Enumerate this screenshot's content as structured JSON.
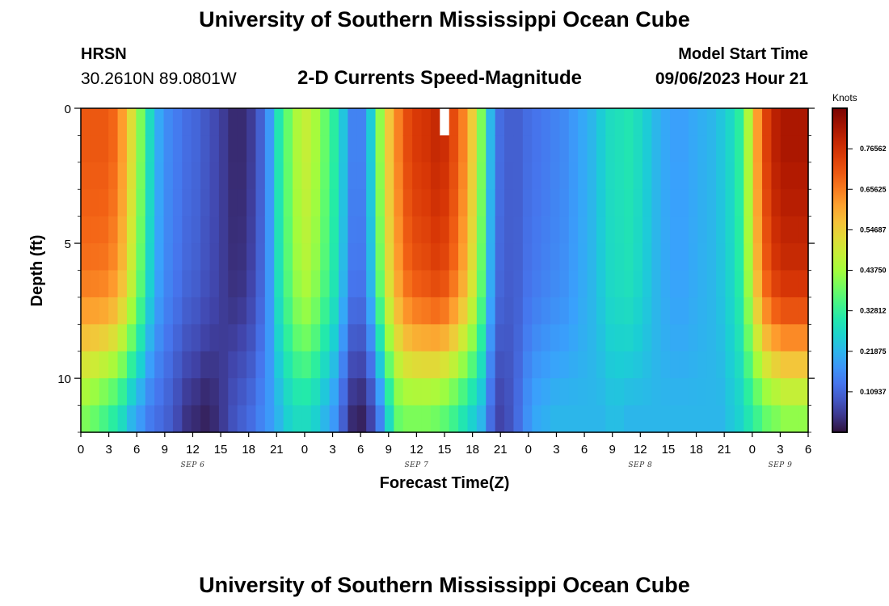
{
  "header": {
    "title": "University of Southern Mississippi Ocean Cube",
    "station": "HRSN",
    "coords": "30.2610N  89.0801W",
    "subtitle": "2-D Currents Speed-Magnitude",
    "model_label": "Model Start Time",
    "model_time": "09/06/2023 Hour 21"
  },
  "footer": {
    "title": "University of Southern Mississippi Ocean Cube"
  },
  "chart_data": {
    "type": "heatmap",
    "title": "2-D Currents Speed-Magnitude",
    "xlabel": "Forecast Time(Z)",
    "ylabel": "Depth (ft)",
    "x_start_hour": 0,
    "x_end_hour": 78,
    "x_step_hours": 1,
    "x_ticks": [
      "0",
      "3",
      "6",
      "9",
      "12",
      "15",
      "18",
      "21",
      "0",
      "3",
      "6",
      "9",
      "12",
      "15",
      "18",
      "21",
      "0",
      "3",
      "6",
      "9",
      "12",
      "15",
      "18",
      "21",
      "0",
      "3",
      "6"
    ],
    "date_labels": [
      {
        "text": "SEP 6",
        "hour": 12
      },
      {
        "text": "SEP 7",
        "hour": 36
      },
      {
        "text": "SEP 8",
        "hour": 60
      },
      {
        "text": "SEP 9",
        "hour": 75
      }
    ],
    "y_range": [
      0,
      12
    ],
    "y_ticks": [
      "0",
      "5",
      "10"
    ],
    "y_tick_values": [
      0,
      5,
      10
    ],
    "depth_levels": [
      0.5,
      1.5,
      2.5,
      3.5,
      4.5,
      5.5,
      6.5,
      7.5,
      8.5,
      9.5,
      10.5,
      11.5
    ],
    "colorbar": {
      "unit": "Knots",
      "min": 0.0,
      "max": 0.875,
      "labels": [
        "0.76562",
        "0.65625",
        "0.54687",
        "0.43750",
        "0.32812",
        "0.21875",
        "0.10937"
      ],
      "label_values": [
        0.765625,
        0.65625,
        0.546875,
        0.4375,
        0.328125,
        0.21875,
        0.109375
      ],
      "colormap": "turbo"
    },
    "surface_speed_by_hour": [
      0.7,
      0.7,
      0.7,
      0.68,
      0.62,
      0.52,
      0.4,
      0.28,
      0.2,
      0.16,
      0.14,
      0.12,
      0.11,
      0.09,
      0.07,
      0.05,
      0.03,
      0.03,
      0.05,
      0.1,
      0.18,
      0.3,
      0.38,
      0.45,
      0.48,
      0.44,
      0.38,
      0.32,
      0.24,
      0.15,
      0.15,
      0.25,
      0.42,
      0.56,
      0.65,
      0.72,
      0.75,
      0.76,
      0.78,
      0.77,
      0.72,
      0.65,
      0.55,
      0.4,
      0.22,
      0.12,
      0.1,
      0.1,
      0.12,
      0.13,
      0.14,
      0.15,
      0.16,
      0.18,
      0.2,
      0.22,
      0.25,
      0.28,
      0.29,
      0.3,
      0.28,
      0.25,
      0.22,
      0.2,
      0.19,
      0.19,
      0.2,
      0.21,
      0.22,
      0.24,
      0.27,
      0.32,
      0.45,
      0.62,
      0.74,
      0.8,
      0.82,
      0.82,
      0.82
    ],
    "bottom_speed_by_hour": [
      0.4,
      0.38,
      0.35,
      0.32,
      0.28,
      0.22,
      0.18,
      0.14,
      0.12,
      0.1,
      0.07,
      0.04,
      0.03,
      0.02,
      0.03,
      0.05,
      0.08,
      0.1,
      0.12,
      0.15,
      0.18,
      0.22,
      0.26,
      0.28,
      0.28,
      0.26,
      0.22,
      0.18,
      0.1,
      0.03,
      0.02,
      0.06,
      0.15,
      0.28,
      0.38,
      0.4,
      0.4,
      0.4,
      0.39,
      0.37,
      0.34,
      0.3,
      0.26,
      0.22,
      0.12,
      0.06,
      0.08,
      0.12,
      0.17,
      0.2,
      0.21,
      0.22,
      0.22,
      0.22,
      0.22,
      0.22,
      0.22,
      0.23,
      0.23,
      0.22,
      0.22,
      0.22,
      0.22,
      0.22,
      0.22,
      0.22,
      0.22,
      0.22,
      0.22,
      0.22,
      0.24,
      0.26,
      0.3,
      0.34,
      0.38,
      0.4,
      0.42,
      0.42,
      0.42
    ],
    "depth_profile_shape": [
      0.0,
      0.0,
      0.02,
      0.04,
      0.07,
      0.1,
      0.16,
      0.28,
      0.45,
      0.65,
      0.85,
      1.0
    ],
    "missing_cells": [
      {
        "hour": 39,
        "depth_index": 0
      }
    ]
  }
}
